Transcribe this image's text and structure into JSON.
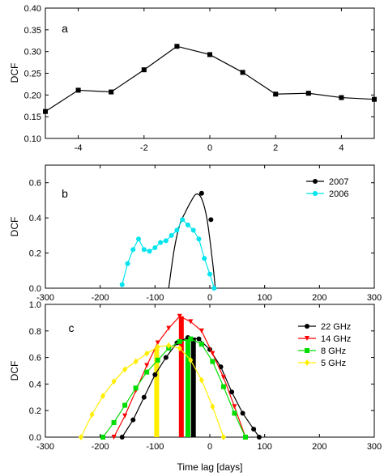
{
  "chart_data": [
    {
      "panel": "a",
      "type": "line",
      "ylabel": "DCF",
      "xlabel": "",
      "xlim": [
        -5,
        5
      ],
      "ylim": [
        0.1,
        0.4
      ],
      "xticks": [
        "-4",
        "-2",
        "0",
        "2",
        "4"
      ],
      "xtick_values": [
        -4,
        -2,
        0,
        2,
        4
      ],
      "yticks": [
        "0.10",
        "0.15",
        "0.20",
        "0.25",
        "0.30",
        "0.35",
        "0.40"
      ],
      "ytick_values": [
        0.1,
        0.15,
        0.2,
        0.25,
        0.3,
        0.35,
        0.4
      ],
      "series": [
        {
          "color": "#000000",
          "marker": "square",
          "error_bars": true,
          "x": [
            -5,
            -4,
            -3,
            -2,
            -1,
            0,
            1,
            2,
            3,
            4,
            5
          ],
          "y": [
            0.162,
            0.211,
            0.207,
            0.258,
            0.312,
            0.293,
            0.252,
            0.202,
            0.204,
            0.194,
            0.19
          ],
          "err": [
            0.004,
            0.004,
            0.004,
            0.003,
            0.004,
            0.004,
            0.003,
            0.003,
            0.003,
            0.003,
            0.004
          ]
        }
      ]
    },
    {
      "panel": "b",
      "type": "line",
      "ylabel": "DCF",
      "xlabel": "",
      "xlim": [
        -300,
        300
      ],
      "ylim": [
        0,
        0.7
      ],
      "xticks": [
        "-300",
        "-200",
        "-100",
        "0",
        "100",
        "200",
        "300"
      ],
      "xtick_values": [
        -300,
        -200,
        -100,
        0,
        100,
        200,
        300
      ],
      "yticks": [
        "0.0",
        "0.2",
        "0.4",
        "0.6"
      ],
      "ytick_values": [
        0,
        0.2,
        0.4,
        0.6
      ],
      "legend_position": "top-right",
      "series": [
        {
          "name": "2007",
          "color": "#000000",
          "marker": "circle",
          "smooth": true,
          "x": [
            -75,
            -65,
            -55,
            -45,
            -35,
            -25,
            -15,
            -5,
            5,
            10
          ],
          "y": [
            0.0,
            0.22,
            0.36,
            0.43,
            0.49,
            0.535,
            0.51,
            0.39,
            0.15,
            0.0
          ],
          "marked_points": [
            [
              -15,
              0.54
            ],
            [
              2,
              0.39
            ]
          ]
        },
        {
          "name": "2006",
          "color": "#00e5ee",
          "marker": "circle",
          "x": [
            -160,
            -150,
            -140,
            -130,
            -120,
            -110,
            -100,
            -90,
            -80,
            -70,
            -60,
            -50,
            -40,
            -30,
            -20,
            -10,
            0,
            8
          ],
          "y": [
            0.02,
            0.14,
            0.22,
            0.28,
            0.22,
            0.21,
            0.23,
            0.26,
            0.27,
            0.3,
            0.33,
            0.39,
            0.36,
            0.33,
            0.28,
            0.17,
            0.08,
            0.0
          ]
        }
      ]
    },
    {
      "panel": "c",
      "type": "line",
      "ylabel": "DCF",
      "xlabel": "Time lag  [days]",
      "xlim": [
        -300,
        300
      ],
      "ylim": [
        0,
        1.0
      ],
      "xticks": [
        "-300",
        "-200",
        "-100",
        "0",
        "100",
        "200",
        "300"
      ],
      "xtick_values": [
        -300,
        -200,
        -100,
        0,
        100,
        200,
        300
      ],
      "yticks": [
        "0.0",
        "0.2",
        "0.4",
        "0.6",
        "0.8",
        "1.0"
      ],
      "ytick_values": [
        0,
        0.2,
        0.4,
        0.6,
        0.8,
        1.0
      ],
      "legend_position": "top-right",
      "series": [
        {
          "name": "22 GHz",
          "color": "#000000",
          "marker": "circle",
          "x": [
            -160,
            -140,
            -120,
            -100,
            -80,
            -60,
            -40,
            -20,
            0,
            20,
            40,
            60,
            80,
            90
          ],
          "y": [
            0.0,
            0.13,
            0.3,
            0.47,
            0.6,
            0.71,
            0.75,
            0.74,
            0.66,
            0.53,
            0.34,
            0.18,
            0.06,
            0.0
          ]
        },
        {
          "name": "14  GHz",
          "color": "#ff0000",
          "marker": "triangle-down",
          "x": [
            -175,
            -155,
            -135,
            -115,
            -95,
            -75,
            -55,
            -35,
            -15,
            5,
            25,
            45,
            65
          ],
          "y": [
            0.0,
            0.16,
            0.35,
            0.54,
            0.71,
            0.82,
            0.91,
            0.87,
            0.8,
            0.63,
            0.45,
            0.23,
            0.0
          ]
        },
        {
          "name": "8 GHz",
          "color": "#00dd00",
          "marker": "square",
          "x": [
            -195,
            -175,
            -155,
            -135,
            -115,
            -95,
            -75,
            -55,
            -35,
            -15,
            5,
            25,
            45,
            65
          ],
          "y": [
            0.0,
            0.11,
            0.24,
            0.37,
            0.49,
            0.58,
            0.67,
            0.72,
            0.74,
            0.7,
            0.57,
            0.38,
            0.18,
            0.0
          ]
        },
        {
          "name": "5 GHz",
          "color": "#ffee00",
          "marker": "diamond",
          "x": [
            -235,
            -215,
            -195,
            -175,
            -155,
            -135,
            -115,
            -95,
            -75,
            -55,
            -35,
            -15,
            5,
            25
          ],
          "y": [
            0.0,
            0.17,
            0.31,
            0.42,
            0.51,
            0.57,
            0.63,
            0.68,
            0.69,
            0.67,
            0.58,
            0.43,
            0.23,
            0.0
          ]
        }
      ],
      "peak_bars": [
        {
          "color": "#ffee00",
          "x": -97,
          "y": 0.67
        },
        {
          "color": "#ff0000",
          "x": -52,
          "y": 0.91
        },
        {
          "color": "#00dd00",
          "x": -40,
          "y": 0.74
        },
        {
          "color": "#000000",
          "x": -30,
          "y": 0.75
        }
      ]
    }
  ]
}
